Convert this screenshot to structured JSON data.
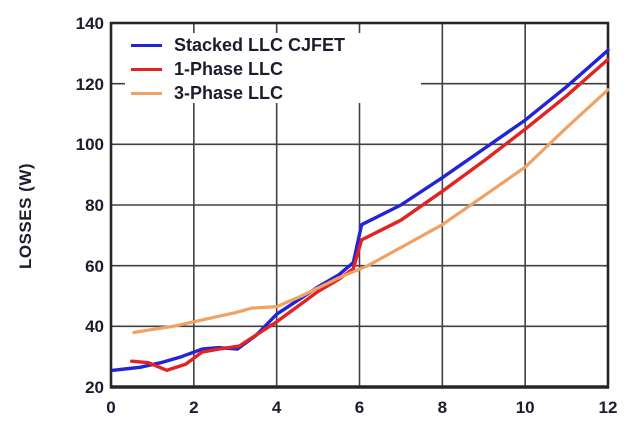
{
  "chart_data": {
    "type": "line",
    "title": "",
    "xlabel": "",
    "ylabel": "LOSSES (W)",
    "xlim": [
      0,
      12
    ],
    "ylim": [
      20,
      140
    ],
    "xticks": [
      0,
      2,
      4,
      6,
      8,
      10,
      12
    ],
    "yticks": [
      20,
      40,
      60,
      80,
      100,
      120,
      140
    ],
    "grid": true,
    "legend_position": "top-left",
    "axis_color": "#262626",
    "grid_color": "#414141",
    "series": [
      {
        "name": "Stacked LLC CJFET",
        "color": "#2323d7",
        "points": [
          [
            0.05,
            25.5
          ],
          [
            0.7,
            26.5
          ],
          [
            1.2,
            28
          ],
          [
            1.7,
            30
          ],
          [
            2.2,
            32.5
          ],
          [
            2.6,
            33
          ],
          [
            3.05,
            32.5
          ],
          [
            3.5,
            37
          ],
          [
            4,
            44
          ],
          [
            4.5,
            48.5
          ],
          [
            5,
            53
          ],
          [
            5.5,
            57
          ],
          [
            5.85,
            61
          ],
          [
            6.05,
            73.5
          ],
          [
            7,
            80
          ],
          [
            8,
            89
          ],
          [
            9,
            98.5
          ],
          [
            10,
            108
          ],
          [
            11,
            119
          ],
          [
            12,
            131
          ]
        ]
      },
      {
        "name": "1-Phase LLC",
        "color": "#e32222",
        "points": [
          [
            0.5,
            28.5
          ],
          [
            0.9,
            28
          ],
          [
            1.35,
            25.5
          ],
          [
            1.8,
            27.5
          ],
          [
            2.2,
            31.5
          ],
          [
            2.6,
            32.5
          ],
          [
            3.1,
            33.5
          ],
          [
            3.6,
            38
          ],
          [
            4,
            41.5
          ],
          [
            4.5,
            46.5
          ],
          [
            5,
            51.5
          ],
          [
            5.5,
            55.5
          ],
          [
            5.85,
            59
          ],
          [
            6.05,
            68.5
          ],
          [
            7,
            75
          ],
          [
            8,
            84.5
          ],
          [
            9,
            94.5
          ],
          [
            10,
            105
          ],
          [
            11,
            116
          ],
          [
            12,
            128
          ]
        ]
      },
      {
        "name": "3-Phase LLC",
        "color": "#f0a264",
        "points": [
          [
            0.55,
            38
          ],
          [
            1,
            39
          ],
          [
            1.5,
            40
          ],
          [
            2,
            41.5
          ],
          [
            2.5,
            43
          ],
          [
            3,
            44.5
          ],
          [
            3.4,
            46
          ],
          [
            4,
            46.5
          ],
          [
            4.6,
            50
          ],
          [
            5.05,
            53
          ],
          [
            5.5,
            56
          ],
          [
            6.2,
            60
          ],
          [
            7,
            66
          ],
          [
            8,
            73.5
          ],
          [
            9,
            83
          ],
          [
            10,
            92.5
          ],
          [
            11,
            105.5
          ],
          [
            12,
            118
          ]
        ]
      }
    ]
  }
}
